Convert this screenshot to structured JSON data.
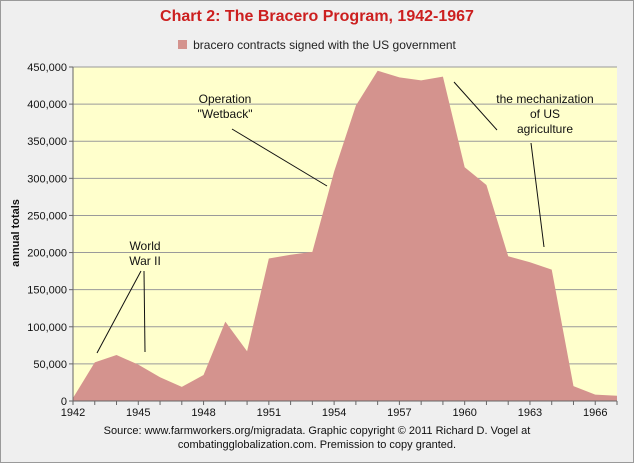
{
  "chart_data": {
    "type": "area",
    "title": "Chart 2:  The Bracero Program, 1942-1967",
    "ylabel": "annual totals",
    "xlabel": "",
    "series": [
      {
        "name": "bracero contracts signed with the US government",
        "color": "#d4938e",
        "x": [
          1942,
          1943,
          1944,
          1945,
          1946,
          1947,
          1948,
          1949,
          1950,
          1951,
          1952,
          1953,
          1954,
          1955,
          1956,
          1957,
          1958,
          1959,
          1960,
          1961,
          1962,
          1963,
          1964,
          1965,
          1966,
          1967
        ],
        "values": [
          4000,
          52000,
          62000,
          49000,
          32000,
          19000,
          35000,
          107000,
          67000,
          192000,
          197000,
          201000,
          309000,
          398000,
          445000,
          436000,
          432000,
          437000,
          315000,
          291000,
          195000,
          187000,
          177000,
          20000,
          8600,
          7000
        ]
      }
    ],
    "xlim": [
      1942,
      1967
    ],
    "ylim": [
      0,
      450000
    ],
    "x_ticks": [
      "1942",
      "1945",
      "1948",
      "1951",
      "1954",
      "1957",
      "1960",
      "1963",
      "1966"
    ],
    "y_ticks": [
      "0",
      "50,000",
      "100,000",
      "150,000",
      "200,000",
      "250,000",
      "300,000",
      "350,000",
      "400,000",
      "450,000"
    ],
    "grid": "horizontal",
    "legend_position": "top",
    "plot_background": "#ffffcc",
    "annotations": [
      {
        "lines": [
          "World",
          "War II"
        ]
      },
      {
        "lines": [
          "Operation",
          "\"Wetback\""
        ]
      },
      {
        "lines": [
          "the mechanization",
          "of US",
          "agriculture"
        ]
      }
    ],
    "source_lines": [
      "Source: www.farmworkers.org/migradata. Graphic copyright © 2011 Richard D. Vogel at",
      "combatingglobalization.com. Premission to copy granted."
    ]
  }
}
